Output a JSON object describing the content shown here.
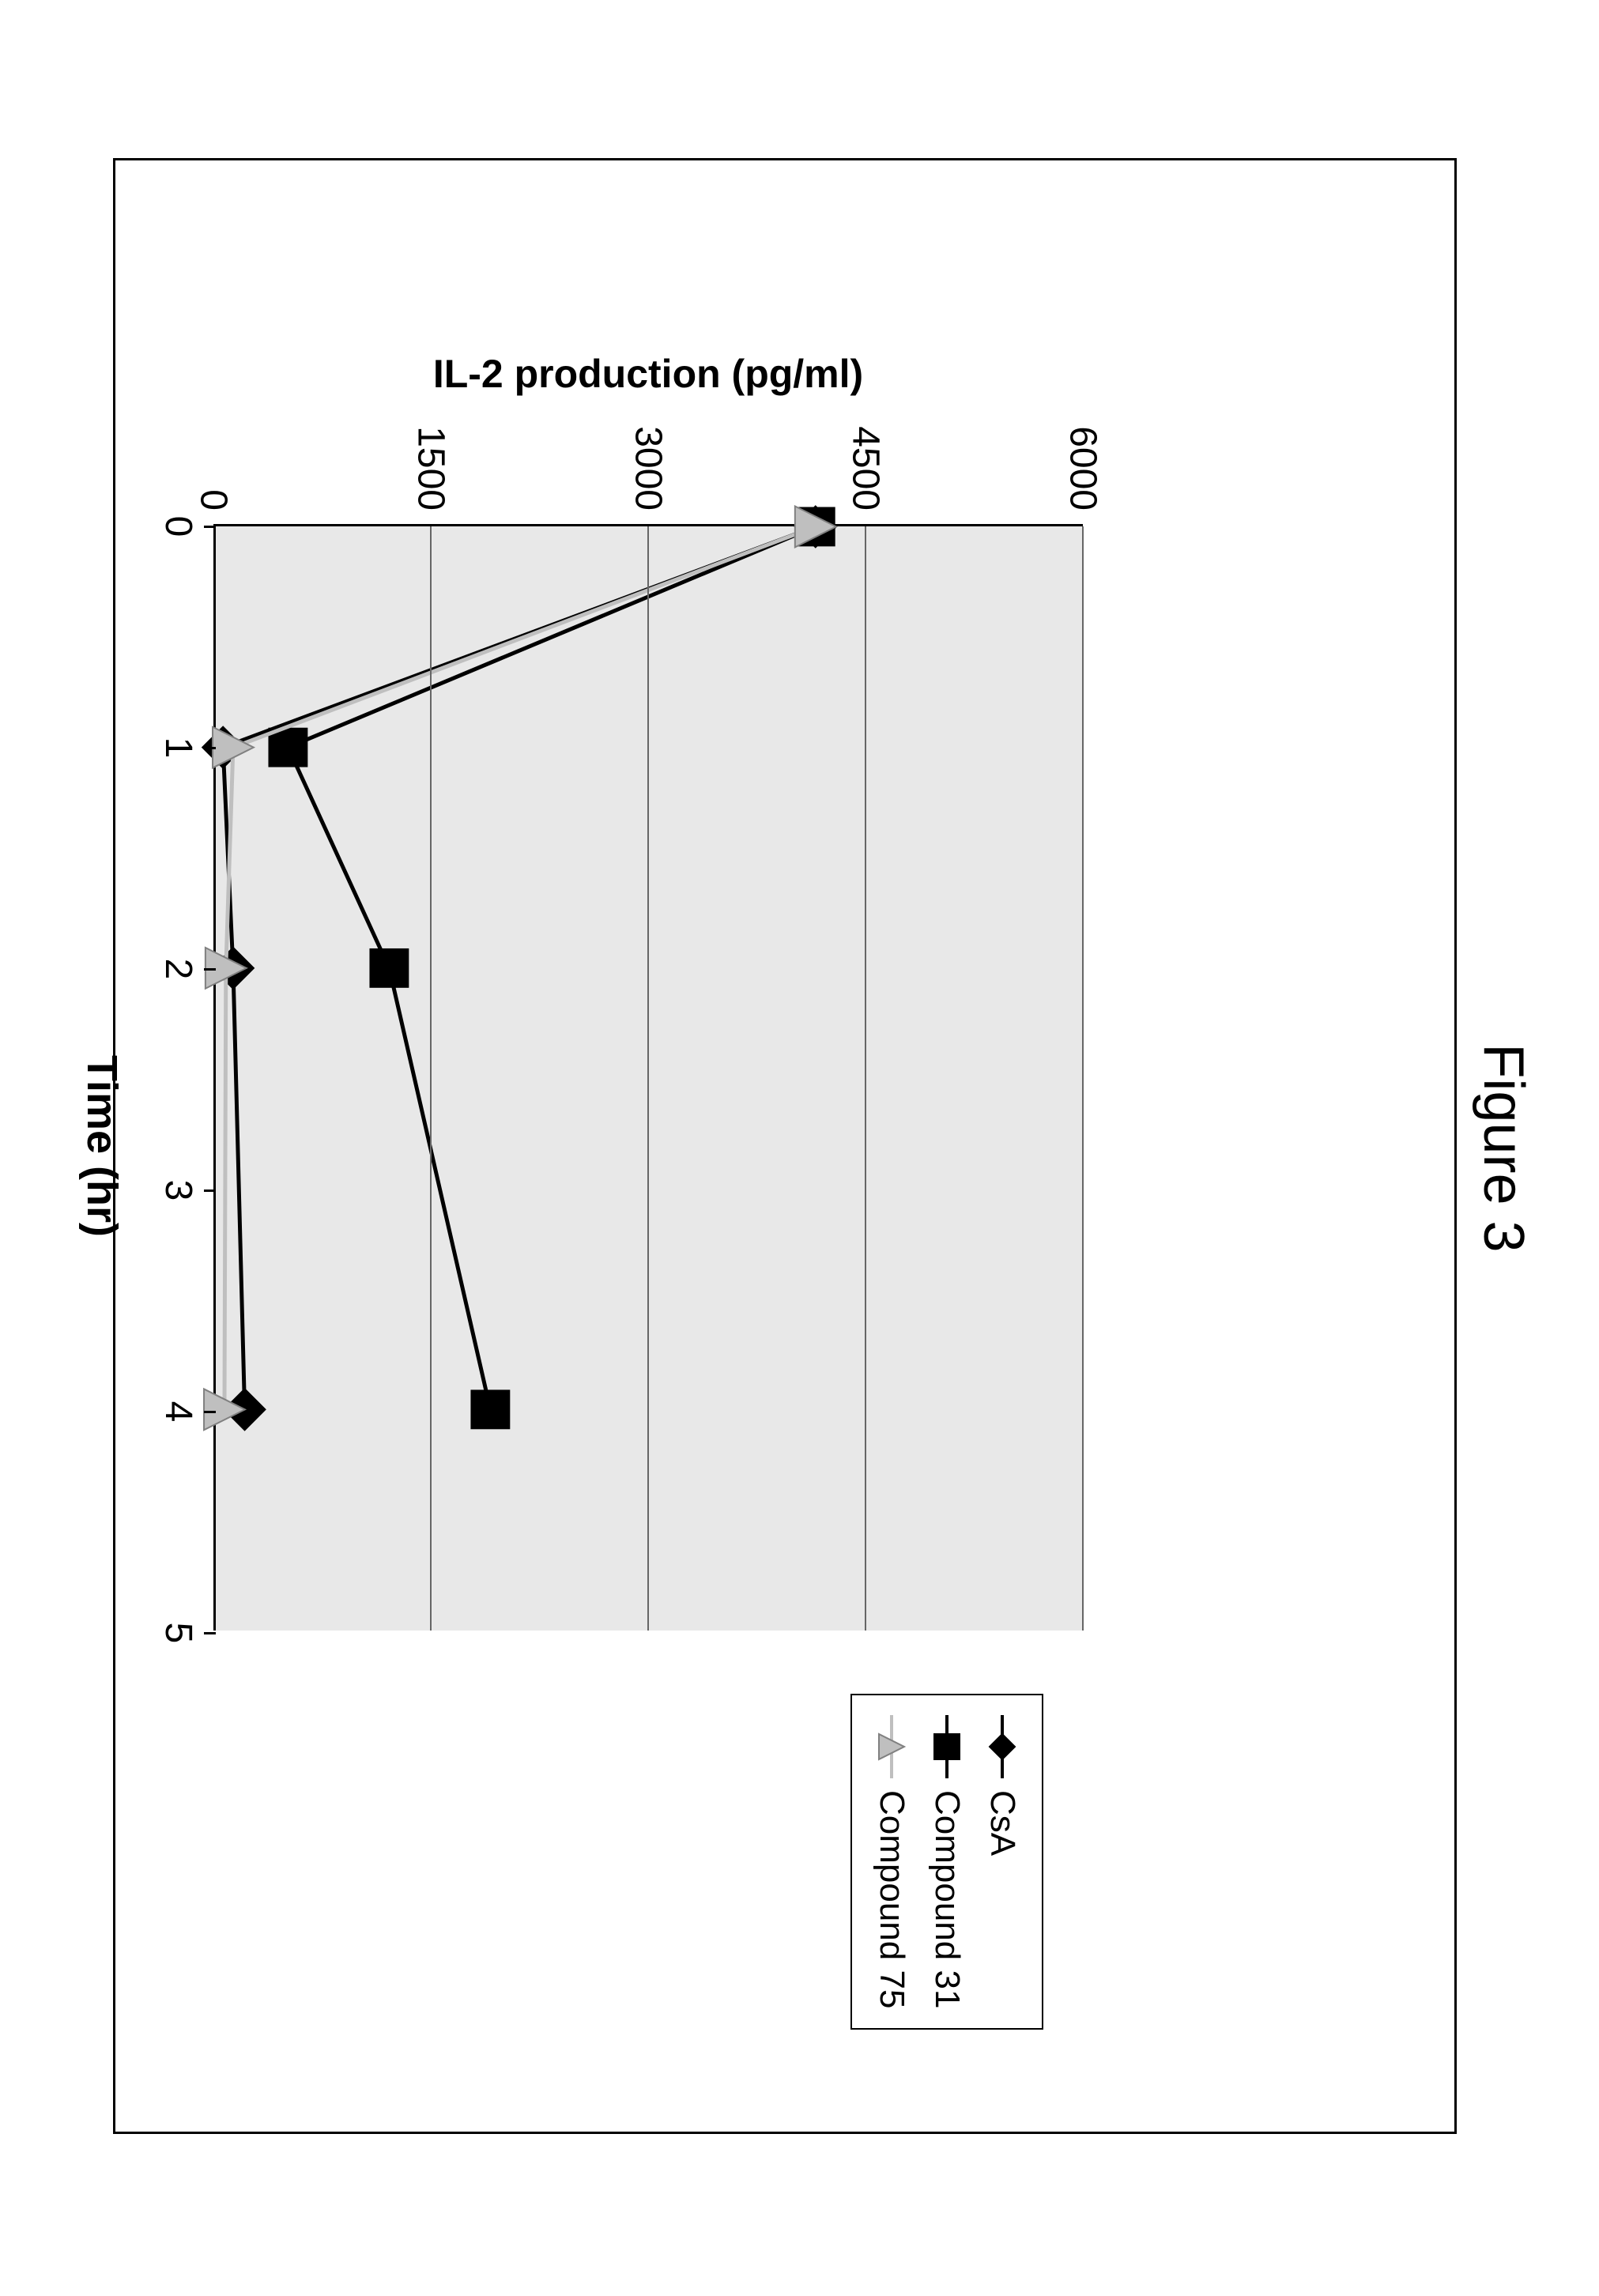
{
  "figure": {
    "title": "Figure 3",
    "title_fontsize": 72
  },
  "chart": {
    "type": "line",
    "x_axis": {
      "title": "Time (hr)",
      "min": 0,
      "max": 5,
      "ticks": [
        0,
        1,
        2,
        3,
        4,
        5
      ],
      "tick_labels": [
        "0",
        "1",
        "2",
        "3",
        "4",
        "5"
      ]
    },
    "y_axis": {
      "title": "IL-2 production (pg/ml)",
      "min": 0,
      "max": 6000,
      "ticks": [
        0,
        1500,
        3000,
        4500,
        6000
      ],
      "tick_labels": [
        "0",
        "1500",
        "3000",
        "4500",
        "6000"
      ]
    },
    "plot_background": "#e8e8e8",
    "grid_color": "#666666",
    "series": [
      {
        "name": "CsA",
        "marker": "diamond",
        "marker_fill": "#000000",
        "marker_stroke": "#000000",
        "marker_size": 26,
        "line_color": "#000000",
        "line_width": 5,
        "data": [
          {
            "x": 0,
            "y": 4150
          },
          {
            "x": 1,
            "y": 50
          },
          {
            "x": 2,
            "y": 120
          },
          {
            "x": 4,
            "y": 200
          }
        ]
      },
      {
        "name": "Compound 31",
        "marker": "square",
        "marker_fill": "#000000",
        "marker_stroke": "#000000",
        "marker_size": 24,
        "line_color": "#000000",
        "line_width": 5,
        "data": [
          {
            "x": 0,
            "y": 4150
          },
          {
            "x": 1,
            "y": 500
          },
          {
            "x": 2,
            "y": 1200
          },
          {
            "x": 4,
            "y": 1900
          }
        ]
      },
      {
        "name": "Compound 75",
        "marker": "triangle",
        "marker_fill": "#bfbfbf",
        "marker_stroke": "#808080",
        "marker_size": 26,
        "line_color": "#bfbfbf",
        "line_width": 5,
        "data": [
          {
            "x": 0,
            "y": 4150
          },
          {
            "x": 1,
            "y": 120
          },
          {
            "x": 2,
            "y": 70
          },
          {
            "x": 4,
            "y": 60
          }
        ]
      }
    ]
  }
}
